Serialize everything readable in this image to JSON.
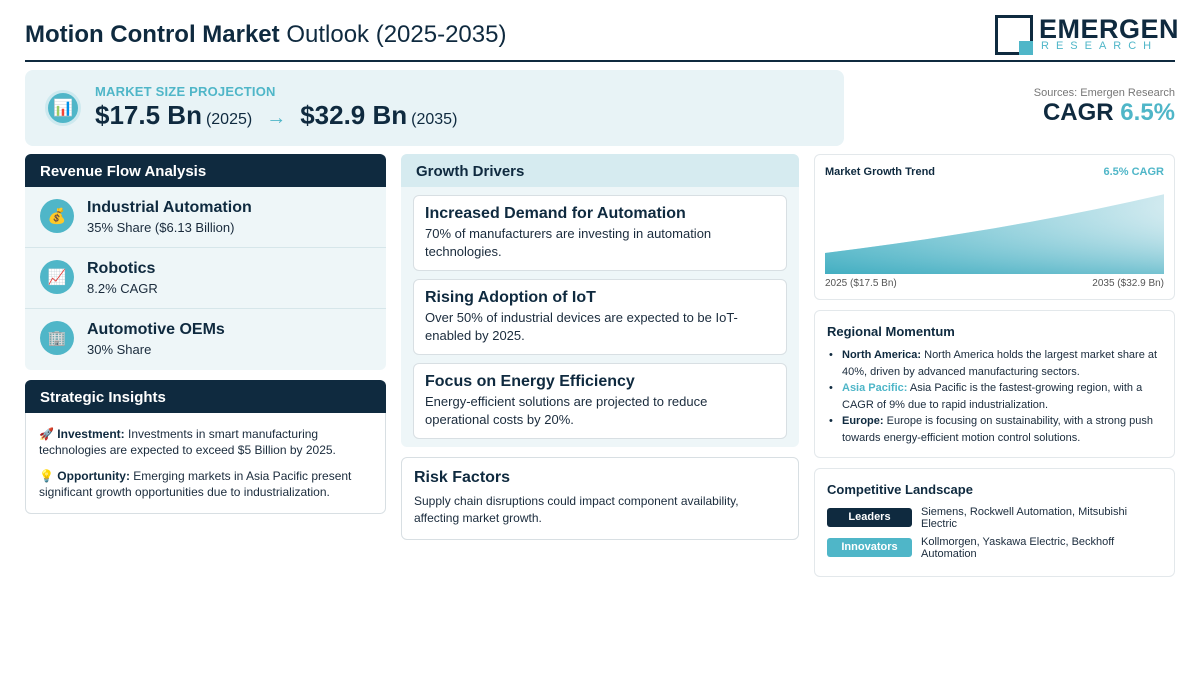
{
  "header": {
    "title_bold": "Motion Control Market",
    "title_light": "Outlook (2025-2035)",
    "logo_main": "EMERGEN",
    "logo_sub": "RESEARCH"
  },
  "projection": {
    "label": "MARKET SIZE PROJECTION",
    "start_value": "$17.5 Bn",
    "start_year": "(2025)",
    "arrow": "→",
    "end_value": "$32.9 Bn",
    "end_year": "(2035)",
    "icon": "bar-chart-icon"
  },
  "sources": "Sources: Emergen Research",
  "cagr": {
    "label": "CAGR",
    "value": "6.5%"
  },
  "revenue": {
    "title": "Revenue Flow Analysis",
    "items": [
      {
        "icon": "money-bag-icon",
        "glyph": "💰",
        "title": "Industrial Automation",
        "sub": "35% Share ($6.13 Billion)"
      },
      {
        "icon": "trend-up-icon",
        "glyph": "📈",
        "title": "Robotics",
        "sub": "8.2% CAGR"
      },
      {
        "icon": "office-building-icon",
        "glyph": "🏢",
        "title": "Automotive OEMs",
        "sub": "30% Share"
      }
    ]
  },
  "strategic": {
    "title": "Strategic Insights",
    "items": [
      {
        "glyph": "🚀",
        "label": "Investment:",
        "text": "Investments in smart manufacturing technologies are expected to exceed $5 Billion by 2025."
      },
      {
        "glyph": "💡",
        "label": "Opportunity:",
        "text": "Emerging markets in Asia Pacific present significant growth opportunities due to industrialization."
      }
    ]
  },
  "growth": {
    "title": "Growth Drivers",
    "items": [
      {
        "title": "Increased Demand for Automation",
        "desc": "70% of manufacturers are investing in automation technologies."
      },
      {
        "title": "Rising Adoption of IoT",
        "desc": "Over 50% of industrial devices are expected to be IoT-enabled by 2025."
      },
      {
        "title": "Focus on Energy Efficiency",
        "desc": "Energy-efficient solutions are projected to reduce operational costs by 20%."
      }
    ]
  },
  "risk": {
    "title": "Risk Factors",
    "desc": "Supply chain disruptions could impact component availability, affecting market growth."
  },
  "trend": {
    "title": "Market Growth Trend",
    "cagr_label": "6.5% CAGR",
    "start_label": "2025 ($17.5 Bn)",
    "end_label": "2035 ($32.9 Bn)"
  },
  "chart_data": {
    "type": "area",
    "x": [
      2025,
      2035
    ],
    "values": [
      17.5,
      32.9
    ],
    "title": "Market Growth Trend",
    "xlabel": "",
    "ylabel": ""
  },
  "regional": {
    "title": "Regional Momentum",
    "items": [
      {
        "region": "North America:",
        "text": "North America holds the largest market share at 40%, driven by advanced manufacturing sectors."
      },
      {
        "region": "Asia Pacific:",
        "text": "Asia Pacific is the fastest-growing region, with a CAGR of 9% due to rapid industrialization."
      },
      {
        "region": "Europe:",
        "text": "Europe is focusing on sustainability, with a strong push towards energy-efficient motion control solutions."
      }
    ]
  },
  "competitive": {
    "title": "Competitive Landscape",
    "rows": [
      {
        "badge": "Leaders",
        "color": "#0f2a3f",
        "text": "Siemens, Rockwell Automation, Mitsubishi Electric"
      },
      {
        "badge": "Innovators",
        "color": "#4fb6c8",
        "text": "Kollmorgen, Yaskawa Electric, Beckhoff Automation"
      }
    ]
  },
  "colors": {
    "navy": "#0f2a3f",
    "accent": "#4fb6c8",
    "panel": "#eef6f8"
  }
}
